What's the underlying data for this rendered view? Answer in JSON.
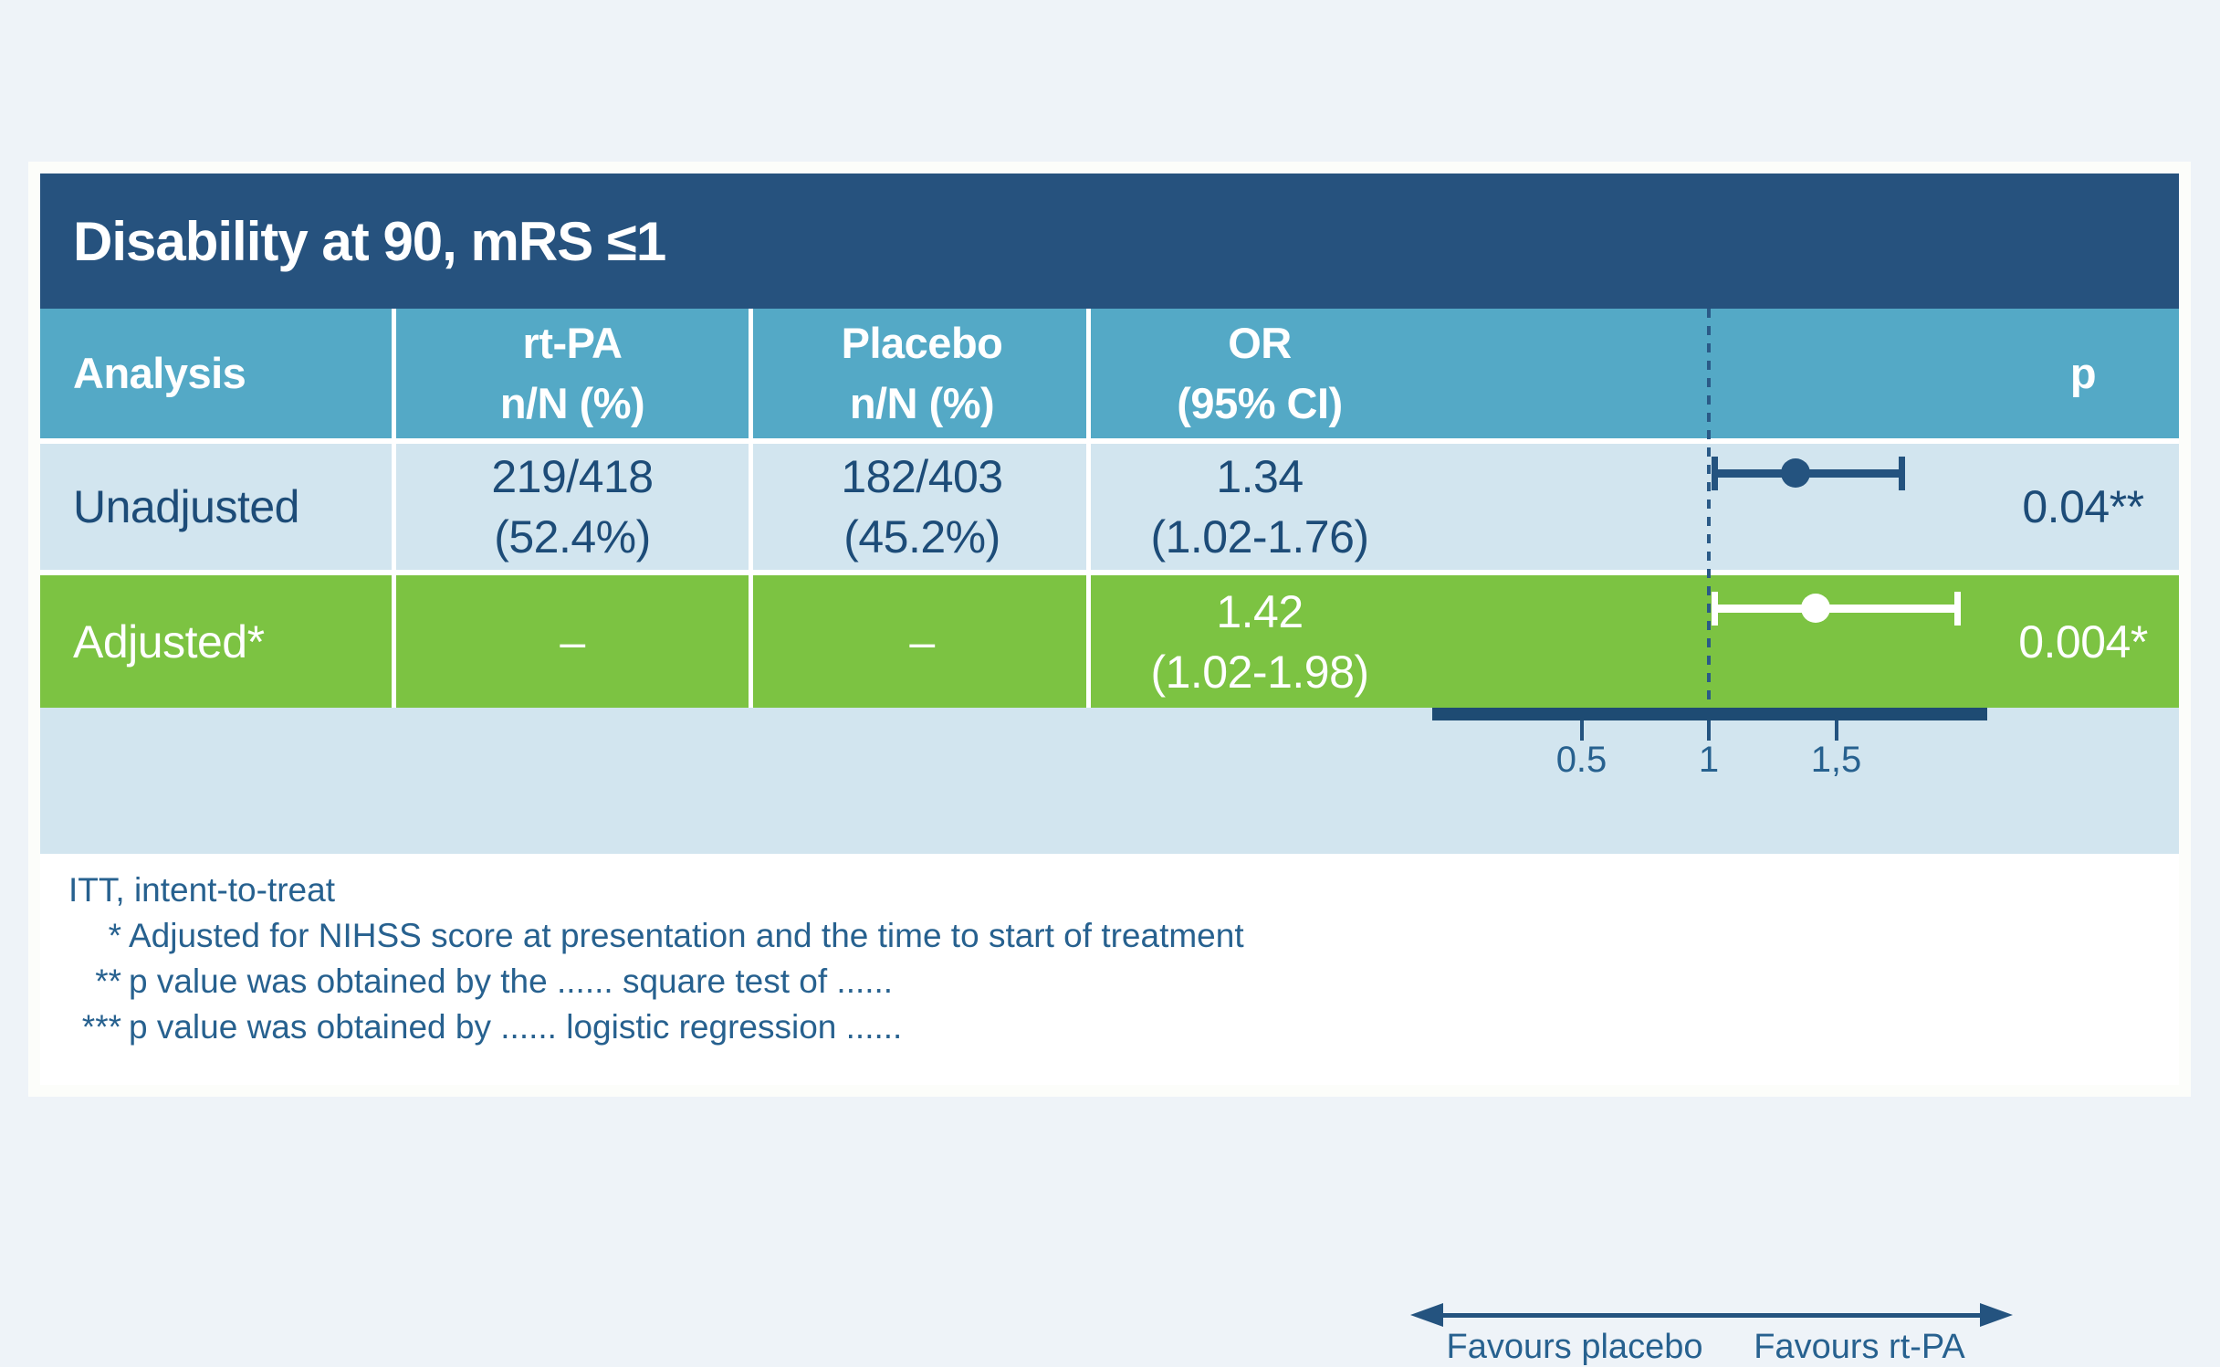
{
  "colors": {
    "page_bg": "#eef3f8",
    "title_bar": "#26527e",
    "header_teal": "#54a9c6",
    "row_light": "#d2e5ef",
    "row_green": "#7cc342",
    "axis_navy": "#1e4b73",
    "marker_navy": "#24537f",
    "text_navy": "#1d4c78",
    "text_blue": "#27618f",
    "marker_white": "#ffffff"
  },
  "panel": {
    "title": "Disability at 90, mRS ≤1"
  },
  "table": {
    "header": {
      "analysis": "Analysis",
      "rtpa_line1": "rt-PA",
      "rtpa_line2": "n/N (%)",
      "placebo_line1": "Placebo",
      "placebo_line2": "n/N (%)",
      "or_line1": "OR",
      "or_line2": "(95% CI)",
      "p": "p"
    },
    "rows": [
      {
        "analysis": "Unadjusted",
        "rtpa_n": "219/418",
        "rtpa_pct": "(52.4%)",
        "placebo_n": "182/403",
        "placebo_pct": "(45.2%)",
        "or": "1.34",
        "or_ci": "(1.02-1.76)",
        "p": "0.04**"
      },
      {
        "analysis": "Adjusted*",
        "rtpa_n": "–",
        "placebo_n": "–",
        "or": "1.42",
        "or_ci": "(1.02-1.98)",
        "p": "0.004*"
      }
    ]
  },
  "chart_data": {
    "type": "forest",
    "title": "Disability at 90, mRS ≤1",
    "x_axis": {
      "scale": "linear",
      "tick_values": [
        0.5,
        1,
        1.5
      ],
      "tick_labels": [
        "0.5",
        "1",
        "1,5"
      ],
      "reference_value": 1,
      "left_label": "Favours placebo",
      "right_label": "Favours rt-PA"
    },
    "series": [
      {
        "name": "Unadjusted",
        "or": 1.34,
        "ci": [
          1.02,
          1.76
        ],
        "p": "0.04**",
        "marker": "navy-filled-circle"
      },
      {
        "name": "Adjusted",
        "or": 1.42,
        "ci": [
          1.02,
          1.98
        ],
        "p": "0.004*",
        "marker": "white-filled-circle"
      }
    ]
  },
  "footnotes": [
    {
      "marker": "",
      "text": "ITT, intent-to-treat"
    },
    {
      "marker": "*",
      "text": "Adjusted for NIHSS score at presentation and the time to start of treatment"
    },
    {
      "marker": "**",
      "text": "p value was obtained by the ...... square test of ......"
    },
    {
      "marker": "***",
      "text": "p value was obtained by ...... logistic regression ......"
    }
  ]
}
